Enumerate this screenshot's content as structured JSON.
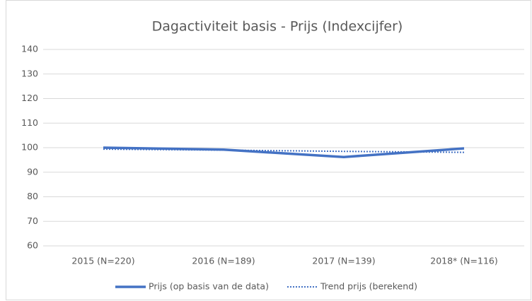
{
  "chart_data": {
    "type": "line",
    "title": "Dagactiviteit basis - Prijs (Indexcijfer)",
    "categories": [
      "2015 (N=220)",
      "2016 (N=189)",
      "2017 (N=139)",
      "2018* (N=116)"
    ],
    "series": [
      {
        "name": "Prijs (op basis van de data)",
        "color": "#4472c4",
        "line_style": "solid",
        "values": [
          100,
          99.2,
          96.2,
          99.7
        ]
      },
      {
        "name": "Trend prijs (berekend)",
        "color": "#4472c4",
        "line_style": "dotted",
        "values": [
          99.4,
          99.0,
          98.5,
          98.1
        ]
      }
    ],
    "ylim": [
      60,
      140
    ],
    "yticks": [
      60,
      70,
      80,
      90,
      100,
      110,
      120,
      130,
      140
    ],
    "grid": true,
    "legend": "bottom"
  }
}
